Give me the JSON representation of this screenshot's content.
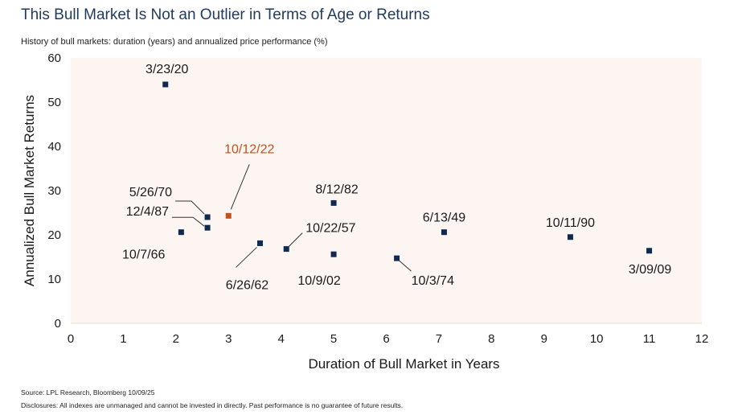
{
  "title": "This Bull Market Is Not an Outlier in Terms of Age or Returns",
  "subtitle": "History of bull markets: duration (years) and annualized price performance (%)",
  "source": "Source: LPL Research, Bloomberg 10/09/25",
  "disclosures": "Disclosures: All indexes are unmanaged and cannot be invested in directly. Past performance is no guarantee of future results.",
  "colors": {
    "plot_bg": "#fcf5f2",
    "marker": "#0f2a50",
    "highlight": "#c4501a",
    "leader": "#333333"
  },
  "chart_data": {
    "type": "scatter",
    "xlabel": "Duration of Bull Market in Years",
    "ylabel": "Annualized Bull Market Returns",
    "xlim": [
      0,
      12
    ],
    "ylim": [
      0,
      60
    ],
    "xticks": [
      0,
      1,
      2,
      3,
      4,
      5,
      6,
      7,
      8,
      9,
      10,
      11,
      12
    ],
    "yticks": [
      0,
      10,
      20,
      30,
      40,
      50,
      60
    ],
    "grid": false,
    "points": [
      {
        "label": "3/23/20",
        "x": 1.8,
        "y": 54.0,
        "highlight": false
      },
      {
        "label": "10/12/22",
        "x": 3.0,
        "y": 24.3,
        "highlight": true
      },
      {
        "label": "5/26/70",
        "x": 2.6,
        "y": 24.0,
        "highlight": false
      },
      {
        "label": "12/4/87",
        "x": 2.6,
        "y": 21.6,
        "highlight": false
      },
      {
        "label": "10/7/66",
        "x": 2.1,
        "y": 20.6,
        "highlight": false
      },
      {
        "label": "6/26/62",
        "x": 3.6,
        "y": 18.1,
        "highlight": false
      },
      {
        "label": "10/22/57",
        "x": 4.1,
        "y": 16.8,
        "highlight": false
      },
      {
        "label": "8/12/82",
        "x": 5.0,
        "y": 27.2,
        "highlight": false
      },
      {
        "label": "10/9/02",
        "x": 5.0,
        "y": 15.6,
        "highlight": false
      },
      {
        "label": "10/3/74",
        "x": 6.2,
        "y": 14.7,
        "highlight": false
      },
      {
        "label": "6/13/49",
        "x": 7.1,
        "y": 20.6,
        "highlight": false
      },
      {
        "label": "10/11/90",
        "x": 9.5,
        "y": 19.5,
        "highlight": false
      },
      {
        "label": "3/09/09",
        "x": 11.0,
        "y": 16.4,
        "highlight": false
      }
    ]
  }
}
